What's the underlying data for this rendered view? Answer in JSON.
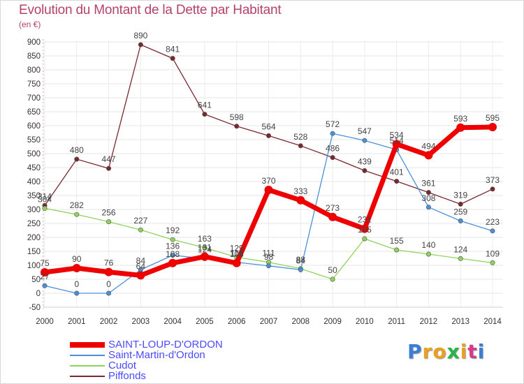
{
  "page": {
    "title": "Evolution du Montant de la Dette par Habitant",
    "unit": "(en €)",
    "logo": "Proxiti",
    "logo_colors": [
      "#3a7fd5",
      "#e8a21e",
      "#e8a21e",
      "#2bb34a",
      "#e8a21e",
      "#d63a8c",
      "#3a7fd5"
    ]
  },
  "chart_data": {
    "type": "line",
    "title": "Evolution du Montant de la Dette par Habitant",
    "ylabel": "(en €)",
    "xlabel": "",
    "categories": [
      "2000",
      "2001",
      "2002",
      "2003",
      "2004",
      "2005",
      "2006",
      "2007",
      "2008",
      "2009",
      "2010",
      "2011",
      "2012",
      "2013",
      "2014"
    ],
    "ylim": [
      -50,
      900
    ],
    "yticks": [
      "-50",
      "0",
      "50",
      "100",
      "150",
      "200",
      "250",
      "300",
      "350",
      "400",
      "450",
      "500",
      "550",
      "600",
      "650",
      "700",
      "750",
      "800",
      "850",
      "900"
    ],
    "grid": true,
    "series": [
      {
        "name": "SAINT-LOUP-D'ORDON",
        "color": "#ee0000",
        "values": [
          75,
          90,
          76,
          64,
          108,
          131,
          108,
          370,
          333,
          273,
          231,
          534,
          494,
          593,
          595
        ],
        "labels": [
          "75",
          "90",
          "76",
          "64",
          "108",
          "131",
          "108",
          "370",
          "333",
          "273",
          "231",
          "534",
          "494",
          "593",
          "595"
        ]
      },
      {
        "name": "Saint-Martin-d'Ordon",
        "color": "#4a90d9",
        "values": [
          27,
          0,
          0,
          84,
          136,
          124,
          111,
          98,
          84,
          572,
          547,
          514,
          308,
          259,
          223
        ],
        "labels": [
          "27",
          "0",
          "0",
          "84",
          "136",
          "124",
          "111",
          "98",
          "84",
          "572",
          "547",
          "514",
          "308",
          "259",
          "223"
        ]
      },
      {
        "name": "Cudot",
        "color": "#8fd35a",
        "values": [
          304,
          282,
          256,
          227,
          192,
          163,
          129,
          111,
          88,
          50,
          195,
          155,
          140,
          124,
          109
        ],
        "labels": [
          "304",
          "282",
          "256",
          "227",
          "192",
          "163",
          "129",
          "111",
          "88",
          "50",
          "195",
          "155",
          "140",
          "124",
          "109"
        ]
      },
      {
        "name": "Piffonds",
        "color": "#7a2830",
        "values": [
          314,
          480,
          447,
          890,
          841,
          641,
          598,
          564,
          528,
          486,
          439,
          401,
          361,
          319,
          373
        ],
        "labels": [
          "314",
          "480",
          "447",
          "890",
          "841",
          "641",
          "598",
          "564",
          "528",
          "486",
          "439",
          "401",
          "361",
          "319",
          "373"
        ]
      }
    ],
    "legend_position": "bottom-left"
  }
}
